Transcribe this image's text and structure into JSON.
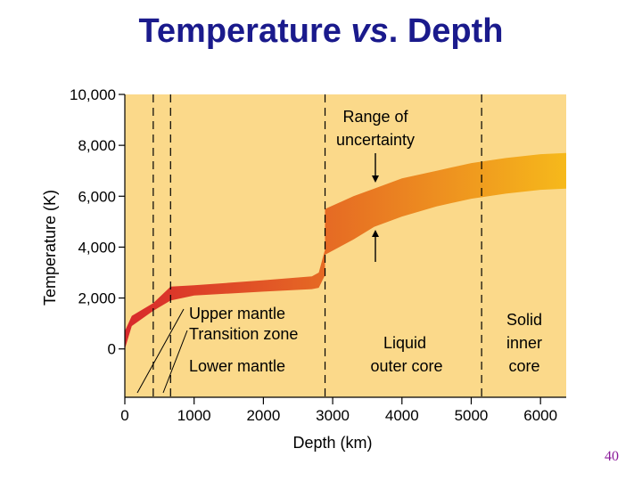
{
  "slide": {
    "title_main": "Temperature",
    "title_vs": "vs",
    "title_end": ". Depth",
    "page_number": "40"
  },
  "colors": {
    "background_panel": "#fbd98a",
    "band_low": "#d8282b",
    "band_high": "#f6b91b",
    "title": "#1a1a8c",
    "page_number": "#8a1a9a"
  },
  "chart_data": {
    "type": "area",
    "title": "Temperature vs. Depth",
    "xlabel": "Depth (km)",
    "ylabel": "Temperature (K)",
    "xlim": [
      0,
      6371
    ],
    "ylim": [
      -1900,
      10000
    ],
    "x_ticks": [
      0,
      1000,
      2000,
      3000,
      4000,
      5000,
      6000
    ],
    "x_tick_labels": [
      "0",
      "1000",
      "2000",
      "3000",
      "4000",
      "5000",
      "6000"
    ],
    "y_ticks": [
      0,
      2000,
      4000,
      6000,
      8000,
      10000
    ],
    "y_tick_labels": [
      "0",
      "2,000",
      "4,000",
      "6,000",
      "8,000",
      "10,000"
    ],
    "grid": false,
    "boundaries_km": [
      410,
      660,
      2890,
      5150
    ],
    "series": [
      {
        "segment": "mantle",
        "x": [
          0,
          100,
          410,
          660,
          1000,
          2000,
          2700,
          2800,
          2890
        ],
        "lower": [
          0,
          900,
          1500,
          1900,
          2100,
          2250,
          2350,
          2400,
          2900
        ],
        "upper": [
          700,
          1300,
          1800,
          2450,
          2500,
          2700,
          2850,
          3000,
          3900
        ]
      },
      {
        "segment": "core",
        "x": [
          2890,
          3300,
          3600,
          4000,
          4500,
          5000,
          5500,
          6000,
          6371
        ],
        "lower": [
          3700,
          4300,
          4800,
          5200,
          5600,
          5900,
          6100,
          6250,
          6300
        ],
        "upper": [
          5500,
          6000,
          6300,
          6700,
          7000,
          7300,
          7500,
          7650,
          7700
        ]
      }
    ],
    "annotations": {
      "range_of": "Range of",
      "uncertainty": "uncertainty",
      "upper_mantle": "Upper mantle",
      "transition_zone": "Transition zone",
      "lower_mantle": "Lower mantle",
      "liquid": "Liquid",
      "outer_core": "outer core",
      "solid": "Solid",
      "inner": "inner",
      "core": "core"
    }
  }
}
